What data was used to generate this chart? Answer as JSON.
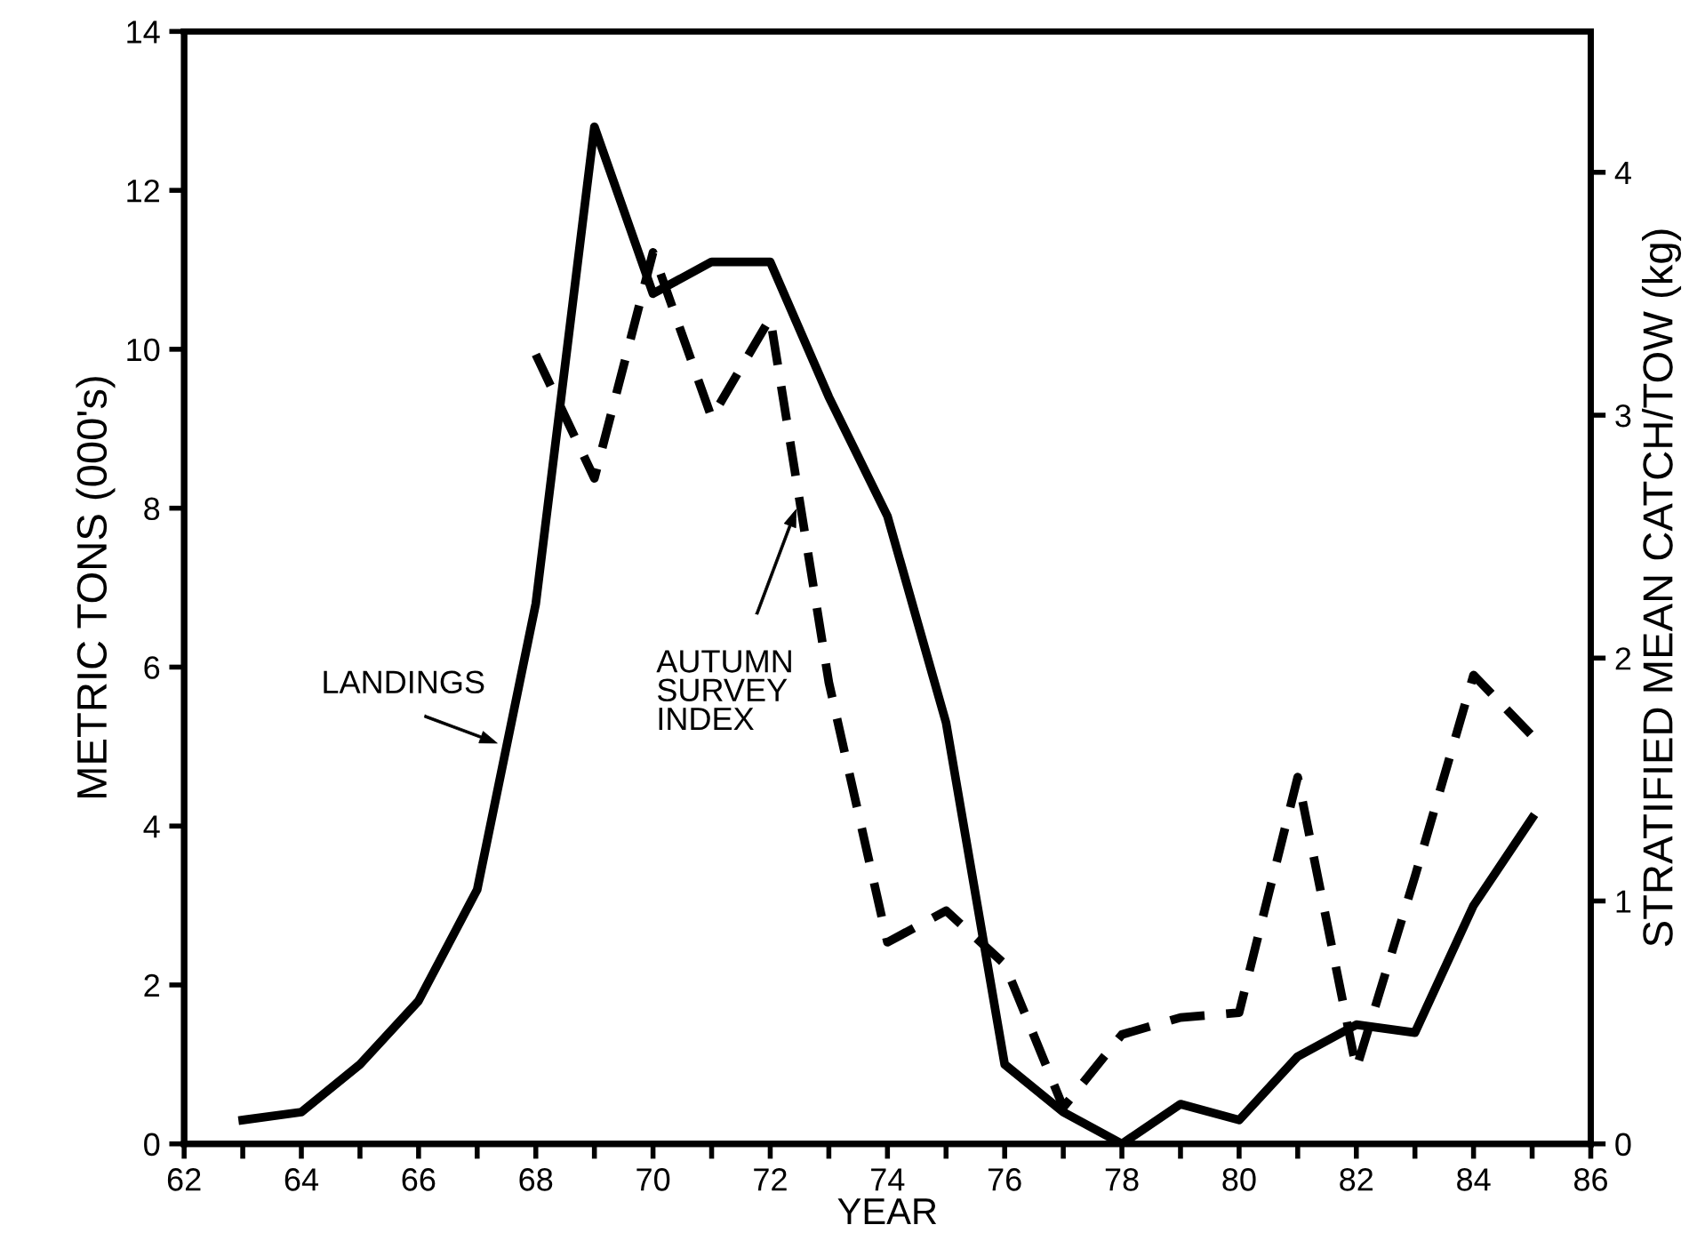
{
  "chart_data": {
    "type": "line",
    "xlabel": "YEAR",
    "ylabel": "METRIC TONS (000's)",
    "y2label": "STRATIFIED MEAN CATCH/TOW (kg)",
    "series": [
      {
        "name": "LANDINGS",
        "color": "#000000",
        "line_style": "solid",
        "x": [
          63,
          64,
          65,
          66,
          67,
          68,
          69,
          70,
          71,
          72,
          73,
          74,
          75,
          76,
          77,
          78,
          79,
          80,
          81,
          82,
          83,
          84,
          85
        ],
        "values": [
          0.3,
          0.4,
          1.0,
          1.8,
          3.2,
          6.8,
          12.8,
          10.7,
          11.1,
          11.1,
          9.4,
          7.9,
          5.3,
          1.0,
          0.4,
          0.0,
          0.5,
          0.3,
          1.1,
          1.5,
          1.4,
          3.0,
          4.1
        ]
      },
      {
        "name": "AUTUMN SURVEY INDEX",
        "color": "#000000",
        "line_style": "dashed",
        "axis": "y2",
        "x": [
          68,
          69,
          70,
          71,
          72,
          73,
          74,
          75,
          76,
          77,
          78,
          79,
          80,
          81,
          82,
          83,
          84,
          85
        ],
        "values": [
          3.25,
          2.74,
          3.67,
          2.99,
          3.4,
          1.9,
          0.83,
          0.96,
          0.74,
          0.15,
          0.45,
          0.52,
          0.54,
          1.51,
          0.31,
          1.1,
          1.93,
          1.68
        ]
      }
    ],
    "xlim": [
      62,
      86
    ],
    "xticks": [
      62,
      {
        "value": 63,
        "label": null
      },
      64,
      {
        "value": 65,
        "label": null
      },
      66,
      {
        "value": 67,
        "label": null
      },
      68,
      {
        "value": 69,
        "label": null
      },
      70,
      {
        "value": 71,
        "label": null
      },
      72,
      {
        "value": 73,
        "label": null
      },
      74,
      {
        "value": 75,
        "label": null
      },
      76,
      {
        "value": 77,
        "label": null
      },
      78,
      {
        "value": 79,
        "label": null
      },
      80,
      {
        "value": 81,
        "label": null
      },
      82,
      {
        "value": 83,
        "label": null
      },
      84,
      {
        "value": 85,
        "label": null
      },
      86
    ],
    "ylim": [
      0,
      14
    ],
    "yticks": [
      0,
      2,
      4,
      6,
      8,
      10,
      12,
      14
    ],
    "y2lim": [
      0,
      4.58
    ],
    "y2ticks": [
      0,
      1,
      2,
      3,
      4
    ],
    "grid": false,
    "legend": false,
    "marker": "none"
  }
}
